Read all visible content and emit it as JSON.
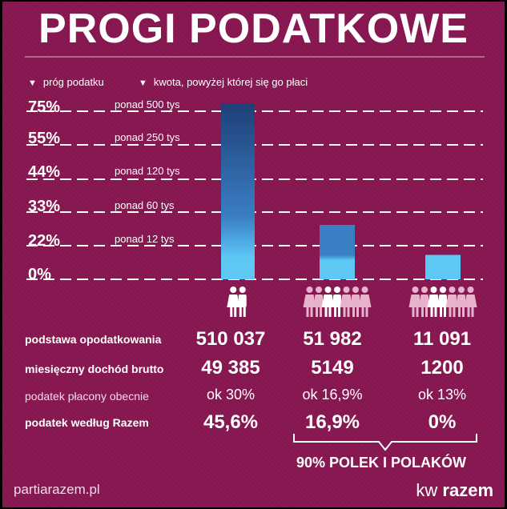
{
  "title": "PROGI PODATKOWE",
  "legend": {
    "threshold": "próg podatku",
    "amount": "kwota, powyżej której się go płaci"
  },
  "chart_data": {
    "type": "bar",
    "tax_levels": [
      {
        "rate": "75%",
        "threshold": "ponad 500 tys"
      },
      {
        "rate": "55%",
        "threshold": "ponad 250 tys"
      },
      {
        "rate": "44%",
        "threshold": "ponad 120 tys"
      },
      {
        "rate": "33%",
        "threshold": "ponad 60 tys"
      },
      {
        "rate": "22%",
        "threshold": "ponad 12 tys"
      },
      {
        "rate": "0%",
        "threshold": ""
      }
    ],
    "series": [
      {
        "values": [
          510037,
          51982,
          11091
        ],
        "people": [
          2,
          7,
          7
        ]
      }
    ],
    "ylim": [
      0,
      510037
    ],
    "colors": {
      "top": "#1e3f78",
      "mid": "#3a7fc4",
      "low": "#5ec8f5"
    }
  },
  "groups": [
    {
      "people": 2,
      "base": "510 037",
      "monthly": "49 385",
      "current": "ok 30%",
      "razem": "45,6%"
    },
    {
      "people": 7,
      "base": "51 982",
      "monthly": "5149",
      "current": "ok 16,9%",
      "razem": "16,9%"
    },
    {
      "people": 7,
      "base": "11 091",
      "monthly": "1200",
      "current": "ok 13%",
      "razem": "0%"
    }
  ],
  "rows": {
    "base_label": "podstawa opodatkowania",
    "monthly_label": "miesięczny dochód brutto",
    "current_label": "podatek płacony obecnie",
    "razem_label": "podatek według Razem"
  },
  "brace_label": "90% POLEK I POLAKÓW",
  "footer": {
    "site": "partiarazem.pl",
    "kw": "kw",
    "brand": "razem"
  }
}
